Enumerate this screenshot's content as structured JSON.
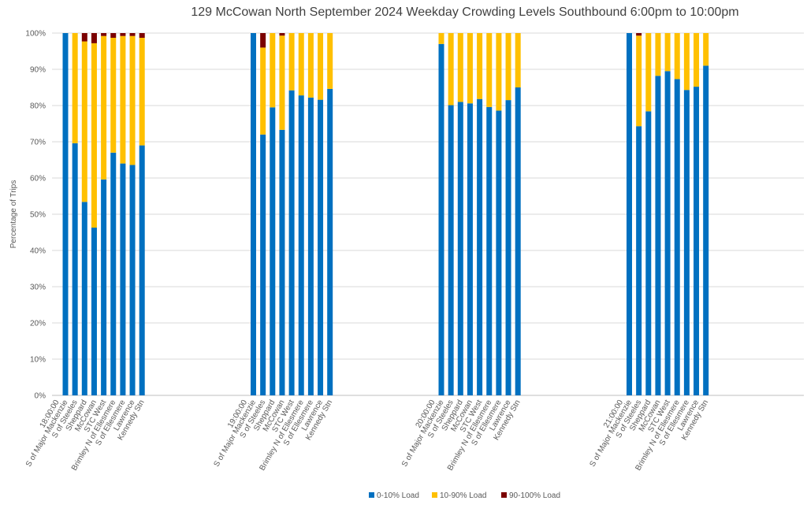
{
  "chart_data": {
    "type": "stacked-bar",
    "title": "129 McCowan North September 2024  Weekday Crowding Levels Southbound 6:00pm to 10:00pm",
    "y_label": "Percentage of Trips",
    "groups": [
      "18:00:00",
      "19:00:00",
      "20:00:00",
      "21:00:00"
    ],
    "categories": [
      "S of Major Mackenzie",
      "S of Steeles",
      "Sheppard",
      "McCowan",
      "STC West",
      "Brimley N of Ellesmere",
      "S of Ellesmere",
      "Lawrence",
      "Kennedy Stn",
      "S of Major Mackenzie",
      "S of Steeles",
      "Sheppard",
      "McCowan",
      "STC West",
      "Brimley N of Ellesmere",
      "S of Ellesmere",
      "Lawrence",
      "Kennedy Stn",
      "S of Major Mackenzie",
      "S of Steeles",
      "Sheppard",
      "McCowan",
      "STC West",
      "Brimley N of Ellesmere",
      "S of Ellesmere",
      "Lawrence",
      "Kennedy Stn",
      "S of Major Mackenzie",
      "S of Steeles",
      "Sheppard",
      "McCowan",
      "STC West",
      "Brimley N of Ellesmere",
      "S of Ellesmere",
      "Lawrence",
      "Kennedy Stn"
    ],
    "series": [
      {
        "name": "0-10% Load",
        "color": "#0070c0",
        "values": [
          100,
          69.6,
          53.4,
          46.3,
          59.6,
          67,
          64,
          63.6,
          69,
          100,
          72,
          79.5,
          73.3,
          84.2,
          82.8,
          82.2,
          81.6,
          84.6,
          97,
          80.1,
          81,
          80.6,
          81.8,
          79.6,
          78.6,
          81.5,
          85,
          100,
          74.3,
          78.4,
          88.2,
          89.5,
          87.3,
          84.3,
          85.2,
          91
        ]
      },
      {
        "name": "10-90% Load",
        "color": "#ffc000",
        "values": [
          0,
          30.4,
          44.3,
          50.9,
          39.6,
          31.7,
          35.2,
          35.6,
          29.7,
          0,
          24,
          20.5,
          26,
          15.8,
          17.2,
          17.8,
          18.4,
          15.4,
          3,
          19.9,
          19,
          19.4,
          18.2,
          20.4,
          21.4,
          18.5,
          15,
          0,
          25,
          21.6,
          11.8,
          10.5,
          12.7,
          15.7,
          14.8,
          9
        ]
      },
      {
        "name": "90-100% Load",
        "color": "#7b0000",
        "values": [
          0,
          0,
          2.3,
          2.8,
          0.8,
          1.3,
          0.8,
          0.8,
          1.3,
          0,
          4,
          0,
          0.7,
          0,
          0,
          0,
          0,
          0,
          0,
          0,
          0,
          0,
          0,
          0,
          0,
          0,
          0,
          0,
          0.7,
          0,
          0,
          0,
          0,
          0,
          0,
          0
        ]
      }
    ],
    "ylim": [
      0,
      100
    ],
    "yticks": [
      {
        "value": 0,
        "label": "0%"
      },
      {
        "value": 10,
        "label": "10%"
      },
      {
        "value": 20,
        "label": "20%"
      },
      {
        "value": 30,
        "label": "30%"
      },
      {
        "value": 40,
        "label": "40%"
      },
      {
        "value": 50,
        "label": "50%"
      },
      {
        "value": 60,
        "label": "60%"
      },
      {
        "value": 70,
        "label": "70%"
      },
      {
        "value": 80,
        "label": "80%"
      },
      {
        "value": 90,
        "label": "90%"
      },
      {
        "value": 100,
        "label": "100%"
      }
    ],
    "grid": true,
    "legend": "bottom"
  }
}
